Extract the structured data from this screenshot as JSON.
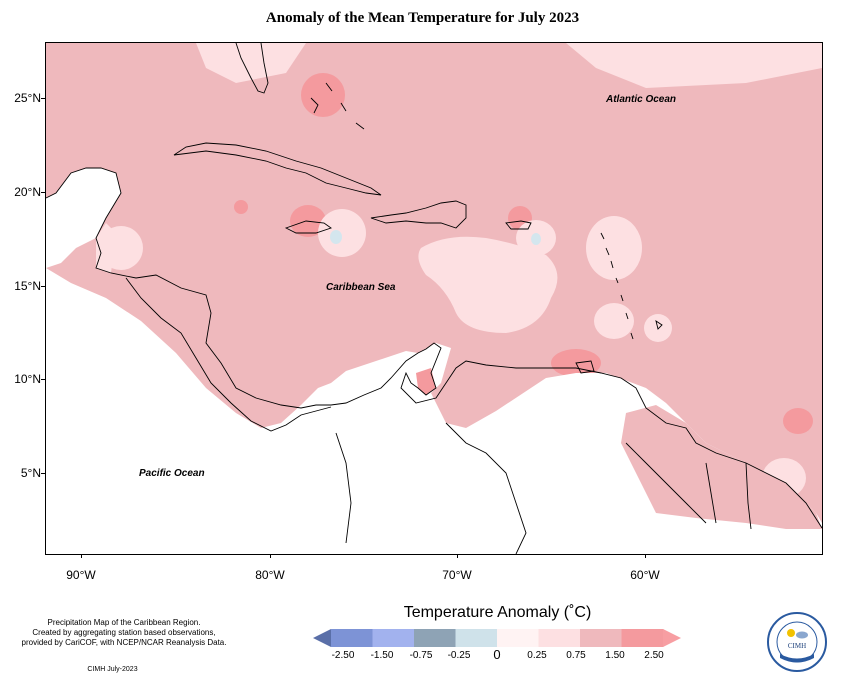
{
  "title": "Anomaly of the Mean Temperature for July 2023",
  "map": {
    "lat_labels": [
      "25°N",
      "20°N",
      "15°N",
      "10°N",
      "5°N"
    ],
    "lon_labels": [
      "90°W",
      "80°W",
      "70°W",
      "60°W"
    ],
    "ocean_labels": {
      "atlantic": "Atlantic Ocean",
      "caribbean": "Caribbean Sea",
      "pacific": "Pacific Ocean"
    },
    "colors": {
      "land_bg": "#ffffff",
      "anomaly_0_75_to_1_50": "#efb9bd",
      "anomaly_0_25_to_0_75": "#fde0e2",
      "anomaly_0_to_0_25": "#fff0f0",
      "anomaly_1_50_to_2_50": "#f49a9e",
      "anomaly_negative": "#d4e6ee"
    }
  },
  "legend": {
    "title": "Temperature Anomaly (˚C)",
    "labels": [
      "-2.50",
      "-1.50",
      "-0.75",
      "-0.25",
      "0",
      "0.25",
      "0.75",
      "1.50",
      "2.50"
    ],
    "colors": [
      "#5a6fa8",
      "#7d93d6",
      "#a2b2ee",
      "#8ea3b5",
      "#cfe2ea",
      "#fff3f3",
      "#fde0e2",
      "#efb9bd",
      "#f49a9e",
      "#f79ea2"
    ]
  },
  "notes": {
    "line1": "Precipitation Map of the Caribbean Region.",
    "line2": "Created by aggregating station based observations,",
    "line3": "provided by CariCOF, with NCEP/NCAR Reanalysis Data.",
    "credit": "CIMH July-2023"
  },
  "logo": {
    "text": "CIMH",
    "ring_text": "Caribbean Institute for Meteorology and Hydrology"
  }
}
